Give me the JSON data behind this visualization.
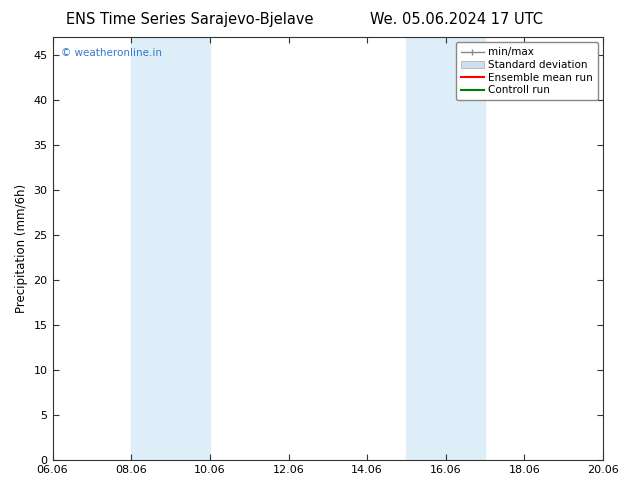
{
  "title_left": "ENS Time Series Sarajevo-Bjelave",
  "title_right": "We. 05.06.2024 17 UTC",
  "ylabel": "Precipitation (mm/6h)",
  "xlabel": "",
  "xtick_labels": [
    "06.06",
    "08.06",
    "10.06",
    "12.06",
    "14.06",
    "16.06",
    "18.06",
    "20.06"
  ],
  "xtick_values": [
    0,
    2,
    4,
    6,
    8,
    10,
    12,
    14
  ],
  "ylim": [
    0,
    47
  ],
  "yticks": [
    0,
    5,
    10,
    15,
    20,
    25,
    30,
    35,
    40,
    45
  ],
  "background_color": "#ffffff",
  "plot_bg_color": "#ffffff",
  "shaded_bands": [
    {
      "x_start": 2,
      "x_end": 4,
      "color": "#ddeef8",
      "alpha": 1.0
    },
    {
      "x_start": 9,
      "x_end": 11,
      "color": "#ddeef8",
      "alpha": 1.0
    }
  ],
  "legend_items": [
    {
      "label": "min/max",
      "color": "#aaaaaa",
      "type": "minmax"
    },
    {
      "label": "Standard deviation",
      "color": "#cce0f0",
      "type": "stddev"
    },
    {
      "label": "Ensemble mean run",
      "color": "#ff0000",
      "type": "line"
    },
    {
      "label": "Controll run",
      "color": "#008000",
      "type": "line"
    }
  ],
  "watermark_text": "© weatheronline.in",
  "watermark_color": "#3377cc",
  "title_fontsize": 10.5,
  "axis_fontsize": 8.5,
  "tick_fontsize": 8,
  "legend_fontsize": 7.5
}
